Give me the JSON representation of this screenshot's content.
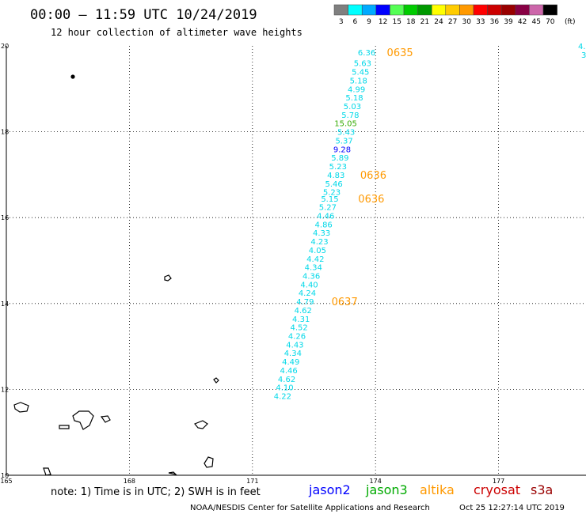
{
  "header": {
    "title": "00:00 – 11:59 UTC 10/24/2019",
    "subtitle": "12 hour collection of altimeter wave heights"
  },
  "legend": {
    "unit": "(ft)",
    "bins": [
      {
        "label": "3",
        "color": "#7f7f7f"
      },
      {
        "label": "6",
        "color": "#00ffff"
      },
      {
        "label": "9",
        "color": "#00aaff"
      },
      {
        "label": "12",
        "color": "#0000ff"
      },
      {
        "label": "15",
        "color": "#55ff55"
      },
      {
        "label": "18",
        "color": "#00cc00"
      },
      {
        "label": "21",
        "color": "#009900"
      },
      {
        "label": "24",
        "color": "#ffff00"
      },
      {
        "label": "27",
        "color": "#ffcc00"
      },
      {
        "label": "30",
        "color": "#ff9900"
      },
      {
        "label": "33",
        "color": "#ff0000"
      },
      {
        "label": "36",
        "color": "#cc0000"
      },
      {
        "label": "39",
        "color": "#990000"
      },
      {
        "label": "42",
        "color": "#880044"
      },
      {
        "label": "45",
        "color": "#cc66aa"
      },
      {
        "label": "70",
        "color": "#000000"
      }
    ]
  },
  "axes": {
    "lat_ticks": [
      "20",
      "18",
      "16",
      "14",
      "12",
      "10"
    ],
    "lon_ticks": [
      "165",
      "168",
      "171",
      "174",
      "177"
    ]
  },
  "track": {
    "color": "#00d8e8",
    "readings": [
      {
        "v": "6.36",
        "lon": 174.0,
        "lat": 19.85,
        "color": "#00d8e8"
      },
      {
        "v": "5.63",
        "lon": 173.9,
        "lat": 19.6,
        "color": "#00d8e8"
      },
      {
        "v": "5.45",
        "lon": 173.85,
        "lat": 19.4,
        "color": "#00d8e8"
      },
      {
        "v": "5.18",
        "lon": 173.8,
        "lat": 19.2,
        "color": "#00d8e8"
      },
      {
        "v": "4.99",
        "lon": 173.75,
        "lat": 19.0,
        "color": "#00d8e8"
      },
      {
        "v": "5.18",
        "lon": 173.7,
        "lat": 18.8,
        "color": "#00d8e8"
      },
      {
        "v": "5.03",
        "lon": 173.65,
        "lat": 18.6,
        "color": "#00d8e8"
      },
      {
        "v": "5.78",
        "lon": 173.6,
        "lat": 18.4,
        "color": "#00d8e8"
      },
      {
        "v": "15.05",
        "lon": 173.55,
        "lat": 18.2,
        "color": "#33aa00"
      },
      {
        "v": "5.43",
        "lon": 173.5,
        "lat": 18.0,
        "color": "#00d8e8"
      },
      {
        "v": "5.37",
        "lon": 173.45,
        "lat": 17.8,
        "color": "#00d8e8"
      },
      {
        "v": "9.28",
        "lon": 173.4,
        "lat": 17.6,
        "color": "#0000ff"
      },
      {
        "v": "5.89",
        "lon": 173.35,
        "lat": 17.4,
        "color": "#00d8e8"
      },
      {
        "v": "5.23",
        "lon": 173.3,
        "lat": 17.2,
        "color": "#00d8e8"
      },
      {
        "v": "4.83",
        "lon": 173.25,
        "lat": 17.0,
        "color": "#00d8e8"
      },
      {
        "v": "5.46",
        "lon": 173.2,
        "lat": 16.8,
        "color": "#00d8e8"
      },
      {
        "v": "5.23",
        "lon": 173.15,
        "lat": 16.6,
        "color": "#00d8e8"
      },
      {
        "v": "5.15",
        "lon": 173.1,
        "lat": 16.45,
        "color": "#00d8e8"
      },
      {
        "v": "5.27",
        "lon": 173.05,
        "lat": 16.25,
        "color": "#00d8e8"
      },
      {
        "v": "4.46",
        "lon": 173.0,
        "lat": 16.05,
        "color": "#00d8e8"
      },
      {
        "v": "4.86",
        "lon": 172.95,
        "lat": 15.85,
        "color": "#00d8e8"
      },
      {
        "v": "4.33",
        "lon": 172.9,
        "lat": 15.65,
        "color": "#00d8e8"
      },
      {
        "v": "4.23",
        "lon": 172.85,
        "lat": 15.45,
        "color": "#00d8e8"
      },
      {
        "v": "4.05",
        "lon": 172.8,
        "lat": 15.25,
        "color": "#00d8e8"
      },
      {
        "v": "4.42",
        "lon": 172.75,
        "lat": 15.05,
        "color": "#00d8e8"
      },
      {
        "v": "4.34",
        "lon": 172.7,
        "lat": 14.85,
        "color": "#00d8e8"
      },
      {
        "v": "4.36",
        "lon": 172.65,
        "lat": 14.65,
        "color": "#00d8e8"
      },
      {
        "v": "4.40",
        "lon": 172.6,
        "lat": 14.45,
        "color": "#00d8e8"
      },
      {
        "v": "4.24",
        "lon": 172.55,
        "lat": 14.25,
        "color": "#00d8e8"
      },
      {
        "v": "4.79",
        "lon": 172.5,
        "lat": 14.05,
        "color": "#00d8e8"
      },
      {
        "v": "4.62",
        "lon": 172.45,
        "lat": 13.85,
        "color": "#00d8e8"
      },
      {
        "v": "4.31",
        "lon": 172.4,
        "lat": 13.65,
        "color": "#00d8e8"
      },
      {
        "v": "4.52",
        "lon": 172.35,
        "lat": 13.45,
        "color": "#00d8e8"
      },
      {
        "v": "4.26",
        "lon": 172.3,
        "lat": 13.25,
        "color": "#00d8e8"
      },
      {
        "v": "4.43",
        "lon": 172.25,
        "lat": 13.05,
        "color": "#00d8e8"
      },
      {
        "v": "4.34",
        "lon": 172.2,
        "lat": 12.85,
        "color": "#00d8e8"
      },
      {
        "v": "4.49",
        "lon": 172.15,
        "lat": 12.65,
        "color": "#00d8e8"
      },
      {
        "v": "4.46",
        "lon": 172.1,
        "lat": 12.45,
        "color": "#00d8e8"
      },
      {
        "v": "4.62",
        "lon": 172.05,
        "lat": 12.25,
        "color": "#00d8e8"
      },
      {
        "v": "4.10",
        "lon": 172.0,
        "lat": 12.05,
        "color": "#00d8e8"
      },
      {
        "v": "4.22",
        "lon": 171.95,
        "lat": 11.85,
        "color": "#00d8e8"
      }
    ],
    "time_stamps": [
      {
        "t": "0635",
        "lon": 174.2,
        "lat": 19.85
      },
      {
        "t": "0636",
        "lon": 173.55,
        "lat": 17.0
      },
      {
        "t": "0636",
        "lon": 173.5,
        "lat": 16.45
      },
      {
        "t": "0637",
        "lon": 172.85,
        "lat": 14.05
      }
    ]
  },
  "edge_track": {
    "readings": [
      "4.",
      "3"
    ]
  },
  "footer": {
    "note": "note: 1) Time is in UTC; 2) SWH is in feet",
    "satellites": [
      {
        "name": "jason2",
        "color": "#0000ff"
      },
      {
        "name": "jason3",
        "color": "#00aa00"
      },
      {
        "name": "altika",
        "color": "#ff9900"
      },
      {
        "name": "cryosat",
        "color": "#cc0000"
      },
      {
        "name": "s3a",
        "color": "#990000"
      }
    ],
    "credit": "NOAA/NESDIS Center for Satellite Applications and Research",
    "timestamp": "Oct 25 12:27:14 UTC 2019"
  }
}
